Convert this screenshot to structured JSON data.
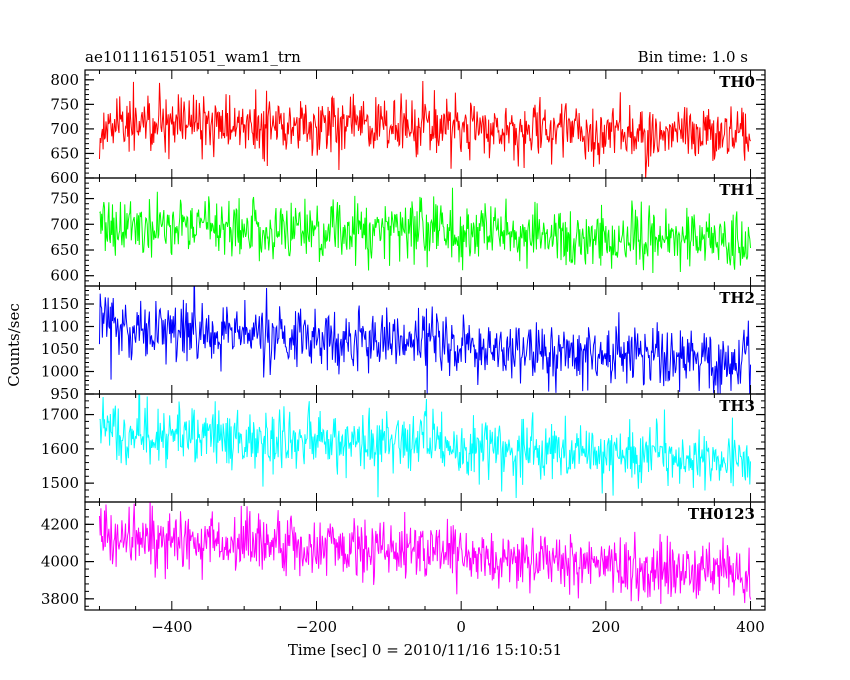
{
  "header": {
    "left_title": "ae101116151051_wam1_trn",
    "right_title": "Bin time: 1.0 s"
  },
  "chart_data": {
    "type": "line",
    "title": "ae101116151051_wam1_trn",
    "subtitle": "Bin time: 1.0 s",
    "xlabel": "Time [sec] 0 = 2010/11/16 15:10:51",
    "ylabel": "Counts/sec",
    "xlim": [
      -520,
      420
    ],
    "x_ticks": [
      -400,
      -200,
      0,
      200,
      400
    ],
    "x_range_data": [
      -500,
      400
    ],
    "bin_time": 1.0,
    "panels": [
      {
        "name": "TH0",
        "color": "#ff0000",
        "ylim": [
          600,
          820
        ],
        "y_ticks": [
          600,
          650,
          700,
          750,
          800
        ],
        "mean_trend": [
          [
            -500,
            710
          ],
          [
            -200,
            705
          ],
          [
            0,
            700
          ],
          [
            200,
            695
          ],
          [
            400,
            690
          ]
        ],
        "noise_sd": 30
      },
      {
        "name": "TH1",
        "color": "#00ff00",
        "ylim": [
          580,
          790
        ],
        "y_ticks": [
          600,
          650,
          700,
          750
        ],
        "mean_trend": [
          [
            -500,
            700
          ],
          [
            -200,
            690
          ],
          [
            0,
            685
          ],
          [
            200,
            675
          ],
          [
            400,
            665
          ]
        ],
        "noise_sd": 30
      },
      {
        "name": "TH2",
        "color": "#0000ff",
        "ylim": [
          950,
          1190
        ],
        "y_ticks": [
          950,
          1000,
          1050,
          1100,
          1150
        ],
        "mean_trend": [
          [
            -500,
            1100
          ],
          [
            -300,
            1085
          ],
          [
            -100,
            1065
          ],
          [
            100,
            1045
          ],
          [
            300,
            1030
          ],
          [
            400,
            1020
          ]
        ],
        "noise_sd": 35
      },
      {
        "name": "TH3",
        "color": "#00ffff",
        "ylim": [
          1445,
          1760
        ],
        "y_ticks": [
          1500,
          1600,
          1700
        ],
        "mean_trend": [
          [
            -500,
            1650
          ],
          [
            -200,
            1625
          ],
          [
            0,
            1610
          ],
          [
            200,
            1585
          ],
          [
            400,
            1565
          ]
        ],
        "noise_sd": 45
      },
      {
        "name": "TH0123",
        "color": "#ff00ff",
        "ylim": [
          3740,
          4320
        ],
        "y_ticks": [
          3800,
          4000,
          4200
        ],
        "mean_trend": [
          [
            -500,
            4130
          ],
          [
            -200,
            4090
          ],
          [
            0,
            4040
          ],
          [
            200,
            3980
          ],
          [
            400,
            3920
          ]
        ],
        "noise_sd": 80
      }
    ]
  }
}
